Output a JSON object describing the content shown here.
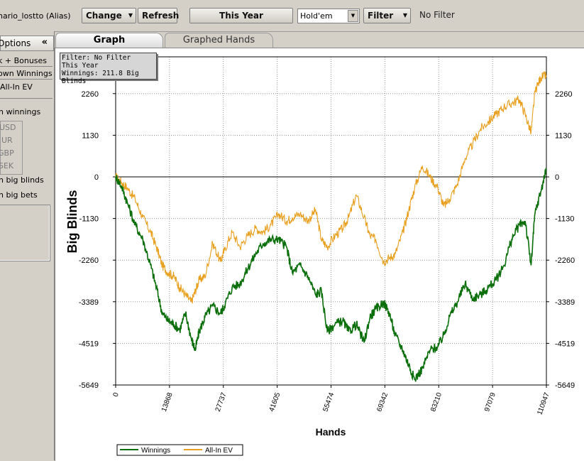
{
  "toolbar": {
    "alias": "hario_lostto (Alias)",
    "change_label": "Change",
    "refresh_label": "Refresh",
    "period_label": "This Year",
    "game_select": "Hold'em",
    "filter_label": "Filter",
    "filter_status": "No Filter"
  },
  "sidebar": {
    "header": "Options",
    "items": [
      "k + Bonuses",
      "own Winnings",
      "All-In EV"
    ],
    "show_label": "n winnings",
    "currencies": [
      "USD",
      "UR",
      "GBP",
      "SEK"
    ],
    "units": [
      "n big blinds",
      "n big bets"
    ]
  },
  "tabs": [
    {
      "label": "Graph",
      "active": true
    },
    {
      "label": "Graphed Hands",
      "active": false
    }
  ],
  "infobox": {
    "line1": "Filter: No Filter",
    "line2": "This Year",
    "line3": "Winnings: 211.8 Big Blinds"
  },
  "chart_data": {
    "type": "line",
    "xlabel": "Hands",
    "ylabel": "Big Blinds",
    "xlim": [
      0,
      110947
    ],
    "ylim": [
      -5649,
      2800
    ],
    "x_ticks": [
      0,
      13868,
      27737,
      41605,
      55474,
      69342,
      83210,
      97079,
      110947
    ],
    "y_ticks": [
      2260,
      1130,
      0,
      -1130,
      -2260,
      -3389,
      -4519,
      -5649
    ],
    "grid": true,
    "legend_position": "bottom-left",
    "series": [
      {
        "name": "Winnings",
        "color": "#0a6e0a",
        "x": [
          0,
          1500,
          3000,
          5000,
          7000,
          9000,
          10500,
          12000,
          13500,
          15000,
          16500,
          18000,
          19500,
          20500,
          21500,
          23000,
          25000,
          27000,
          28000,
          30000,
          32000,
          34000,
          36000,
          38000,
          40000,
          42000,
          44000,
          45500,
          47500,
          49500,
          51500,
          53000,
          54500,
          56500,
          58500,
          60000,
          62000,
          64000,
          65500,
          67000,
          69000,
          70500,
          72000,
          74000,
          75500,
          77000,
          79000,
          81000,
          83000,
          84500,
          86000,
          88000,
          90000,
          92000,
          94000,
          96000,
          98000,
          100000,
          102000,
          104000,
          105500,
          107000,
          108000,
          109500,
          110947
        ],
        "y": [
          0,
          -250,
          -700,
          -1300,
          -1700,
          -2400,
          -3000,
          -3700,
          -3900,
          -4000,
          -4150,
          -3700,
          -4400,
          -4700,
          -4200,
          -3800,
          -3500,
          -3700,
          -3500,
          -3000,
          -2900,
          -2500,
          -2100,
          -1800,
          -1700,
          -1700,
          -1900,
          -2600,
          -2400,
          -2700,
          -3200,
          -3100,
          -4200,
          -4000,
          -3900,
          -4200,
          -4000,
          -4500,
          -3800,
          -3600,
          -3400,
          -3700,
          -4300,
          -4700,
          -5100,
          -5500,
          -5200,
          -4700,
          -4600,
          -4300,
          -3800,
          -3400,
          -2900,
          -3300,
          -3200,
          -3000,
          -2800,
          -2400,
          -1700,
          -1300,
          -1200,
          -2400,
          -1000,
          -400,
          211.8
        ]
      },
      {
        "name": "All-In EV",
        "color": "#e8a020",
        "x": [
          0,
          1500,
          3000,
          5000,
          7000,
          9000,
          10500,
          12000,
          13500,
          15000,
          16500,
          18000,
          19500,
          20500,
          21500,
          23000,
          25000,
          27000,
          28000,
          30000,
          32000,
          34000,
          36000,
          38000,
          40000,
          42000,
          44000,
          45500,
          47500,
          49500,
          51500,
          53000,
          54500,
          56500,
          58500,
          60000,
          62000,
          64000,
          65500,
          67000,
          69000,
          70500,
          72000,
          74000,
          75500,
          77000,
          79000,
          81000,
          83000,
          84500,
          86000,
          88000,
          90000,
          92000,
          94000,
          96000,
          98000,
          100000,
          102000,
          104000,
          105500,
          107000,
          108000,
          109500,
          110947
        ],
        "y": [
          0,
          -150,
          -300,
          -600,
          -1100,
          -1500,
          -1900,
          -2400,
          -2600,
          -2700,
          -3000,
          -3200,
          -3400,
          -3100,
          -2800,
          -2700,
          -1800,
          -2300,
          -2000,
          -1500,
          -1900,
          -1600,
          -1400,
          -1500,
          -1300,
          -1000,
          -1200,
          -1100,
          -1000,
          -1200,
          -900,
          -1700,
          -1900,
          -1600,
          -1400,
          -1100,
          -500,
          -1100,
          -1600,
          -1700,
          -2300,
          -2200,
          -2100,
          -1500,
          -900,
          -300,
          300,
          0,
          -300,
          -800,
          -600,
          -200,
          500,
          900,
          1300,
          1500,
          1700,
          1900,
          2000,
          2100,
          1700,
          1200,
          2300,
          2700,
          2750
        ]
      }
    ]
  }
}
